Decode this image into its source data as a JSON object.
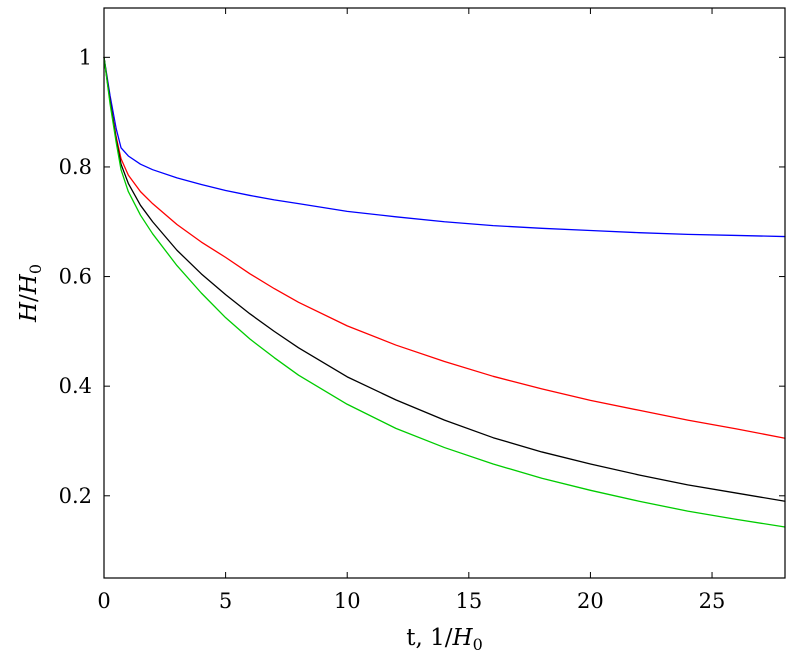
{
  "chart_data": {
    "type": "line",
    "title": "",
    "xlabel": {
      "prefix": "t, 1/",
      "symbol": "H",
      "subscript": "0"
    },
    "ylabel": {
      "symbol": "H",
      "slash": "/",
      "symbol2": "H",
      "subscript": "0"
    },
    "xlim": [
      0,
      28
    ],
    "ylim": [
      0.05,
      1.09
    ],
    "x_ticks": [
      0,
      5,
      10,
      15,
      20,
      25
    ],
    "x_tick_labels": [
      "0",
      "5",
      "10",
      "15",
      "20",
      "25"
    ],
    "y_ticks": [
      0.2,
      0.4,
      0.6,
      0.8,
      1.0
    ],
    "y_tick_labels": [
      "0.2",
      "0.4",
      "0.6",
      "0.8",
      "1"
    ],
    "grid": false,
    "legend": "none",
    "series": [
      {
        "color": "#0000ff",
        "x": [
          0,
          0.25,
          0.5,
          0.7,
          1,
          1.5,
          2,
          3,
          4,
          5,
          6,
          7,
          8,
          10,
          12,
          14,
          16,
          18,
          20,
          22,
          24,
          26,
          28
        ],
        "y": [
          1.0,
          0.93,
          0.87,
          0.835,
          0.82,
          0.805,
          0.795,
          0.78,
          0.768,
          0.757,
          0.748,
          0.74,
          0.733,
          0.719,
          0.709,
          0.7,
          0.693,
          0.688,
          0.684,
          0.68,
          0.677,
          0.675,
          0.673
        ]
      },
      {
        "color": "#ff0000",
        "x": [
          0,
          0.25,
          0.5,
          0.7,
          1,
          1.5,
          2,
          3,
          4,
          5,
          6,
          7,
          8,
          10,
          12,
          14,
          16,
          18,
          20,
          22,
          24,
          26,
          28
        ],
        "y": [
          1.0,
          0.92,
          0.855,
          0.815,
          0.785,
          0.755,
          0.733,
          0.695,
          0.663,
          0.635,
          0.605,
          0.578,
          0.553,
          0.51,
          0.475,
          0.445,
          0.418,
          0.395,
          0.374,
          0.356,
          0.338,
          0.322,
          0.305
        ]
      },
      {
        "color": "#000000",
        "x": [
          0,
          0.25,
          0.5,
          0.7,
          1,
          1.5,
          2,
          3,
          4,
          5,
          6,
          7,
          8,
          10,
          12,
          14,
          16,
          18,
          20,
          22,
          24,
          26,
          28
        ],
        "y": [
          1.0,
          0.92,
          0.85,
          0.805,
          0.77,
          0.73,
          0.7,
          0.648,
          0.605,
          0.567,
          0.532,
          0.5,
          0.47,
          0.417,
          0.375,
          0.338,
          0.306,
          0.28,
          0.258,
          0.238,
          0.22,
          0.205,
          0.19
        ]
      },
      {
        "color": "#00cc00",
        "x": [
          0,
          0.25,
          0.5,
          0.7,
          1,
          1.5,
          2,
          3,
          4,
          5,
          6,
          7,
          8,
          10,
          12,
          14,
          16,
          18,
          20,
          22,
          24,
          26,
          28
        ],
        "y": [
          1.0,
          0.915,
          0.845,
          0.795,
          0.755,
          0.712,
          0.678,
          0.62,
          0.57,
          0.525,
          0.486,
          0.452,
          0.42,
          0.367,
          0.323,
          0.288,
          0.258,
          0.232,
          0.21,
          0.19,
          0.172,
          0.157,
          0.143
        ]
      }
    ]
  }
}
